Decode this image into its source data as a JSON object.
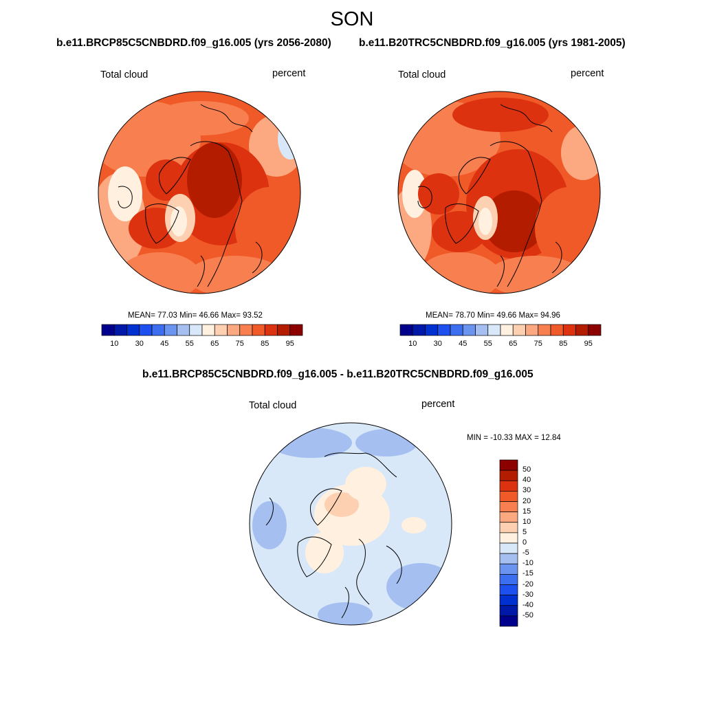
{
  "season": "SON",
  "panels": [
    {
      "title": "b.e11.BRCP85C5CNBDRD.f09_g16.005 (yrs 2056-2080)",
      "variable": "Total cloud",
      "units": "percent",
      "stats": "MEAN=  77.03  Min=  46.66  Max=  93.52",
      "mean": 77.03,
      "min": 46.66,
      "max": 93.52
    },
    {
      "title": "b.e11.B20TRC5CNBDRD.f09_g16.005 (yrs 1981-2005)",
      "variable": "Total cloud",
      "units": "percent",
      "stats": "MEAN=  78.70  Min=  49.66  Max=  94.96",
      "mean": 78.7,
      "min": 49.66,
      "max": 94.96
    }
  ],
  "diff": {
    "title": "b.e11.BRCP85C5CNBDRD.f09_g16.005 - b.e11.B20TRC5CNBDRD.f09_g16.005",
    "variable": "Total cloud",
    "units": "percent",
    "stats": "MIN = -10.33 MAX =  12.84",
    "min": -10.33,
    "max": 12.84
  },
  "colorbar_abs": {
    "levels": [
      10,
      20,
      30,
      40,
      45,
      50,
      55,
      60,
      65,
      70,
      75,
      80,
      85,
      90,
      95
    ],
    "tick_labels": [
      "10",
      "30",
      "45",
      "55",
      "65",
      "75",
      "85",
      "95"
    ],
    "colors": [
      "#00008c",
      "#0018a8",
      "#0030d0",
      "#1e50f0",
      "#3c6ef0",
      "#6b93f0",
      "#a5c0f0",
      "#d8e8f8",
      "#fff0e0",
      "#fcd0b0",
      "#fca880",
      "#f88050",
      "#f05a28",
      "#dc3210",
      "#b41c00",
      "#8c0000"
    ]
  },
  "colorbar_diff": {
    "tick_labels": [
      "50",
      "40",
      "30",
      "20",
      "15",
      "10",
      "5",
      "0",
      "-5",
      "-10",
      "-15",
      "-20",
      "-30",
      "-40",
      "-50"
    ],
    "colors": [
      "#8c0000",
      "#b41c00",
      "#dc3210",
      "#f05a28",
      "#f88050",
      "#fca880",
      "#fcd0b0",
      "#fff0e0",
      "#d8e8f8",
      "#a5c0f0",
      "#6b93f0",
      "#3c6ef0",
      "#1e50f0",
      "#0030d0",
      "#0018a8",
      "#00008c"
    ]
  }
}
